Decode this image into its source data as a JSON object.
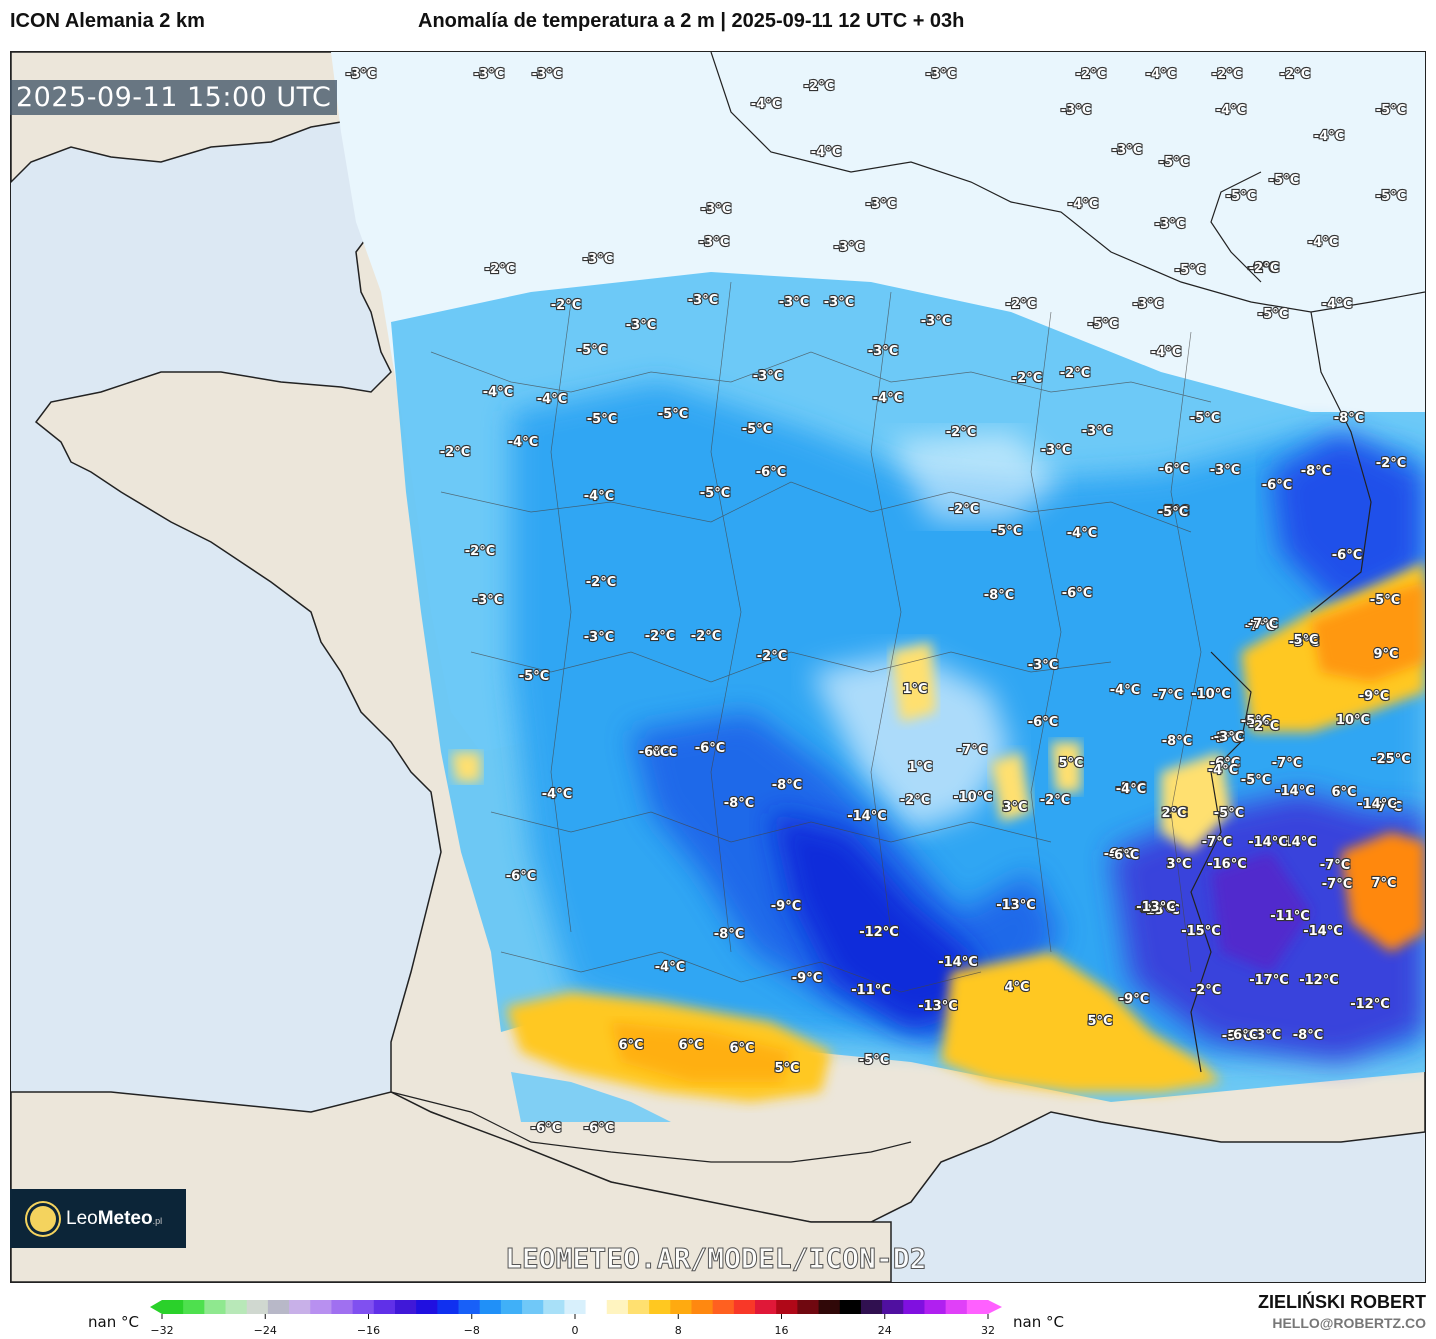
{
  "header": {
    "model": "ICON Alemania 2 km",
    "title": "Anomalía de temperatura a 2 m | 2025-09-11 12 UTC + 03h"
  },
  "timestamp": "2025-09-11 15:00 UTC",
  "watermark": "LEOMETEO.AR/MODEL/ICON-D2",
  "logo": {
    "brand_light": "Leo",
    "brand_bold": "Meteo",
    "suffix": ".pl"
  },
  "author": {
    "name": "ZIELIŃSKI ROBERT",
    "email": "HELLO@ROBERTZ.CO"
  },
  "legend": {
    "nan_left": "nan °C",
    "nan_right": "nan °C",
    "ticks": [
      {
        "value": -32,
        "label": "−32"
      },
      {
        "value": -24,
        "label": "−24"
      },
      {
        "value": -16,
        "label": "−16"
      },
      {
        "value": -8,
        "label": "−8"
      },
      {
        "value": 0,
        "label": "0"
      },
      {
        "value": 8,
        "label": "8"
      },
      {
        "value": 16,
        "label": "16"
      },
      {
        "value": 24,
        "label": "24"
      },
      {
        "value": 32,
        "label": "32"
      }
    ],
    "range": [
      -32,
      32
    ],
    "colors": [
      "#2ad12a",
      "#4ee04e",
      "#8fe88f",
      "#b8e8b8",
      "#d0d8d0",
      "#b8b8c8",
      "#c8b0e8",
      "#b890f0",
      "#a070f0",
      "#8050f0",
      "#6030e8",
      "#4018d8",
      "#2010e0",
      "#1030f0",
      "#1860f8",
      "#2090f8",
      "#40b0f8",
      "#70c8f8",
      "#a8e0f8",
      "#d8f0fc",
      "#ffffff",
      "#fff4c0",
      "#ffe070",
      "#ffc820",
      "#ffaa10",
      "#ff8810",
      "#ff6020",
      "#f83828",
      "#e01838",
      "#b00818",
      "#700810",
      "#300808",
      "#000000",
      "#301050",
      "#5010a0",
      "#8010e0",
      "#b020f0",
      "#e040f8",
      "#ff60ff"
    ]
  },
  "map": {
    "icons": {
      "logo_icon": "sun-icon"
    },
    "labels": [
      {
        "t": "-3°C",
        "c": "ne"
      },
      {
        "t": "-3°C",
        "c": "ne"
      },
      {
        "t": "-3°C",
        "c": "ne"
      },
      {
        "t": "-4°C",
        "c": "ne"
      },
      {
        "t": "-2°C",
        "c": "ne"
      },
      {
        "t": "-3°C",
        "c": "ne"
      },
      {
        "t": "-2°C",
        "c": "ne"
      },
      {
        "t": "-4°C",
        "c": "ne"
      },
      {
        "t": "-2°C",
        "c": "ne"
      },
      {
        "t": "-2°C",
        "c": "ne"
      },
      {
        "t": "-3°C",
        "c": "ne"
      },
      {
        "t": "-4°C",
        "c": "ne"
      },
      {
        "t": "-5°C",
        "c": "ne"
      },
      {
        "t": "-4°C",
        "c": "ne"
      },
      {
        "t": "-3°C",
        "c": "ne"
      },
      {
        "t": "-5°C",
        "c": "ne"
      },
      {
        "t": "-4°C",
        "c": "ne"
      },
      {
        "t": "-5°C",
        "c": "ne"
      },
      {
        "t": "-5°C",
        "c": "ne"
      },
      {
        "t": "-5°C",
        "c": "ne"
      },
      {
        "t": "-3°C",
        "c": "n"
      },
      {
        "t": "-3°C",
        "c": "n"
      },
      {
        "t": "-4°C",
        "c": "n"
      },
      {
        "t": "-3°C",
        "c": "n"
      },
      {
        "t": "-2°C",
        "c": "n"
      },
      {
        "t": "-3°C",
        "c": "n"
      },
      {
        "t": "-2°C",
        "c": "n"
      },
      {
        "t": "-3°C",
        "c": "n"
      },
      {
        "t": "-3°C",
        "c": "n"
      },
      {
        "t": "-3°C",
        "c": "n"
      },
      {
        "t": "-2°C",
        "c": "n"
      },
      {
        "t": "-3°C",
        "c": "n"
      },
      {
        "t": "-5°C",
        "c": "n"
      },
      {
        "t": "-3°C",
        "c": "n"
      },
      {
        "t": "-4°C",
        "c": "n"
      },
      {
        "t": "-6°C",
        "c": "n"
      },
      {
        "t": "-5°C",
        "c": "n"
      },
      {
        "t": "-4°C",
        "c": "n"
      },
      {
        "t": "-3°C",
        "c": "n"
      },
      {
        "t": "-3°C",
        "c": "n"
      },
      {
        "t": "-3°C",
        "c": "n"
      },
      {
        "t": "-2°C",
        "c": "n"
      },
      {
        "t": "-5°C",
        "c": "n"
      },
      {
        "t": "-4°C",
        "c": "n"
      },
      {
        "t": "-3°C",
        "c": "n"
      },
      {
        "t": "-2°C",
        "c": "n"
      },
      {
        "t": "-3°C",
        "c": "n"
      },
      {
        "t": "-4°C",
        "c": "n"
      },
      {
        "t": "-5°C",
        "c": "n"
      },
      {
        "t": "-4°C",
        "c": "n"
      },
      {
        "t": "-5°C",
        "c": "n"
      },
      {
        "t": "-8°C",
        "c": "n"
      },
      {
        "t": "-2°C",
        "c": "n"
      },
      {
        "t": "-4°C",
        "c": "n"
      },
      {
        "t": "-5°C",
        "c": "n"
      },
      {
        "t": "-6°C",
        "c": "n"
      },
      {
        "t": "-3°C",
        "c": "n"
      },
      {
        "t": "-2°C",
        "c": "n"
      },
      {
        "t": "-5°C",
        "c": "n"
      },
      {
        "t": "-5°C",
        "c": "n"
      },
      {
        "t": "-6°C",
        "c": "n"
      },
      {
        "t": "-8°C",
        "c": "n"
      },
      {
        "t": "-4°C",
        "c": "n"
      },
      {
        "t": "-2°C",
        "c": "n"
      },
      {
        "t": "-4°C",
        "c": "n"
      },
      {
        "t": "-5°C",
        "c": "n"
      },
      {
        "t": "-5°C",
        "c": "n"
      },
      {
        "t": "-3°C",
        "c": "n"
      },
      {
        "t": "-4°C",
        "c": "n"
      },
      {
        "t": "-2°C",
        "c": "n"
      },
      {
        "t": "-3°C",
        "c": "n"
      },
      {
        "t": "-6°C",
        "c": "n"
      },
      {
        "t": "-6°C",
        "c": "n"
      },
      {
        "t": "-2°C",
        "c": "n"
      },
      {
        "t": "-5°C",
        "c": "n"
      },
      {
        "t": "-8°C",
        "c": "n"
      },
      {
        "t": "-2°C",
        "c": "n"
      },
      {
        "t": "-3°C",
        "c": "n"
      },
      {
        "t": "-2°C",
        "c": "n"
      },
      {
        "t": "-3°C",
        "c": "n"
      },
      {
        "t": "-2°C",
        "c": "n"
      },
      {
        "t": "-2°C",
        "c": "n"
      },
      {
        "t": "1°C",
        "c": "n"
      },
      {
        "t": "-7°C",
        "c": "n"
      },
      {
        "t": "-3°C",
        "c": "n"
      },
      {
        "t": "-4°C",
        "c": "n"
      },
      {
        "t": "-7°C",
        "c": "n"
      },
      {
        "t": "-10°C",
        "c": "n"
      },
      {
        "t": "-5°C",
        "c": "n"
      },
      {
        "t": "-6°C",
        "c": "n"
      },
      {
        "t": "-5°C",
        "c": "n"
      },
      {
        "t": "-6°C",
        "c": "n"
      },
      {
        "t": "-5°C",
        "c": "n"
      },
      {
        "t": "-6°C",
        "c": "n"
      },
      {
        "t": "-6°C",
        "c": "n"
      },
      {
        "t": "-8°C",
        "c": "n"
      },
      {
        "t": "-3°C",
        "c": "n"
      },
      {
        "t": "1°C",
        "c": "n"
      },
      {
        "t": "-7°C",
        "c": "n"
      },
      {
        "t": "-10°C",
        "c": "n"
      },
      {
        "t": "-8°C",
        "c": "n"
      },
      {
        "t": "-4°C",
        "c": "n"
      },
      {
        "t": "-14°C",
        "c": "n"
      },
      {
        "t": "-2°C",
        "c": "n"
      },
      {
        "t": "-10°C",
        "c": "n"
      },
      {
        "t": "3°C",
        "c": "n"
      },
      {
        "t": "-2°C",
        "c": "n"
      },
      {
        "t": "-2°C",
        "c": "n"
      },
      {
        "t": "-3°C",
        "c": "n"
      },
      {
        "t": "-5°C",
        "c": "n"
      },
      {
        "t": "-7°C",
        "c": "n"
      },
      {
        "t": "-7°C",
        "c": "n"
      },
      {
        "t": "-14°C",
        "c": "n"
      },
      {
        "t": "-5°C",
        "c": "n"
      },
      {
        "t": "-9°C",
        "c": "n"
      },
      {
        "t": "-6°C",
        "c": "n"
      },
      {
        "t": "-12°C",
        "c": "n"
      },
      {
        "t": "-13°C",
        "c": "n"
      },
      {
        "t": "-4°C",
        "c": "n"
      },
      {
        "t": "-14°C",
        "c": "n"
      },
      {
        "t": "-9°C",
        "c": "n"
      },
      {
        "t": "-11°C",
        "c": "n"
      },
      {
        "t": "-13°C",
        "c": "n"
      },
      {
        "t": "-5°C",
        "c": "n"
      },
      {
        "t": "6°C",
        "c": "n"
      },
      {
        "t": "6°C",
        "c": "n"
      },
      {
        "t": "6°C",
        "c": "n"
      },
      {
        "t": "5°C",
        "c": "n"
      },
      {
        "t": "-6°C",
        "c": "n"
      },
      {
        "t": "-6°C",
        "c": "n"
      },
      {
        "t": "4°C",
        "c": "n"
      },
      {
        "t": "5°C",
        "c": "n"
      },
      {
        "t": "-9°C",
        "c": "n"
      },
      {
        "t": "-6°C",
        "c": "n"
      },
      {
        "t": "-8°C",
        "c": "n"
      },
      {
        "t": "-2°C",
        "c": "n"
      },
      {
        "t": "5°C",
        "c": "n"
      },
      {
        "t": "-3°C",
        "c": "n"
      },
      {
        "t": "-13°C",
        "c": "n"
      },
      {
        "t": "-8°C",
        "c": "n"
      },
      {
        "t": "2°C",
        "c": "n"
      },
      {
        "t": "-6°C",
        "c": "n"
      },
      {
        "t": "-14°C",
        "c": "n"
      },
      {
        "t": "-13°C",
        "c": "n"
      },
      {
        "t": "-15°C",
        "c": "n"
      },
      {
        "t": "-17°C",
        "c": "n"
      },
      {
        "t": "-14°C",
        "c": "n"
      },
      {
        "t": "-11°C",
        "c": "n"
      },
      {
        "t": "-12°C",
        "c": "n"
      },
      {
        "t": "-7°C",
        "c": "n"
      },
      {
        "t": "-5°C",
        "c": "n"
      },
      {
        "t": "-12°C",
        "c": "n"
      },
      {
        "t": "-2°C",
        "c": "n"
      },
      {
        "t": "-6°C",
        "c": "n"
      },
      {
        "t": "-16°C",
        "c": "n"
      },
      {
        "t": "3°C",
        "c": "n"
      },
      {
        "t": "-7°C",
        "c": "n"
      },
      {
        "t": "7°C",
        "c": "n"
      },
      {
        "t": "-7°C",
        "c": "n"
      },
      {
        "t": "-14°C",
        "c": "n"
      },
      {
        "t": "2°C",
        "c": "n"
      },
      {
        "t": "-4°C",
        "c": "n"
      },
      {
        "t": "-5°C",
        "c": "n"
      },
      {
        "t": "-13°C",
        "c": "n"
      },
      {
        "t": "6°C",
        "c": "n"
      },
      {
        "t": "-14°C",
        "c": "n"
      },
      {
        "t": "-25°C",
        "c": "n"
      },
      {
        "t": "-4°C",
        "c": "n"
      },
      {
        "t": "-2°C",
        "c": "n"
      },
      {
        "t": "-3°C",
        "c": "n"
      },
      {
        "t": "9°C",
        "c": "n"
      },
      {
        "t": "-9°C",
        "c": "n"
      },
      {
        "t": "10°C",
        "c": "n"
      },
      {
        "t": "-6°C",
        "c": "n"
      },
      {
        "t": "-8°C",
        "c": "n"
      },
      {
        "t": "-6°C",
        "c": "n"
      },
      {
        "t": "5°C",
        "c": "n"
      },
      {
        "t": "-7°C",
        "c": "n"
      }
    ]
  }
}
